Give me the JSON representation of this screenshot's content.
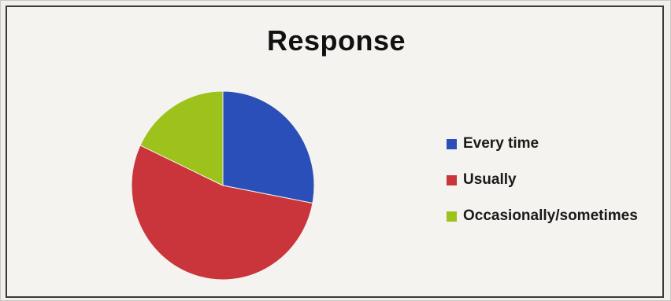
{
  "chart_data": {
    "type": "pie",
    "title": "Response",
    "categories": [
      "Every time",
      "Usually",
      "Occasionally/sometimes"
    ],
    "values": [
      28,
      54,
      18
    ],
    "colors": [
      "#2b4fb8",
      "#c9353a",
      "#9cc21b"
    ],
    "legend_position": "right",
    "start_angle_deg": 0,
    "direction": "clockwise"
  }
}
